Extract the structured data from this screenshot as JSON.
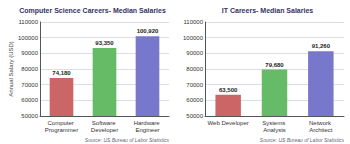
{
  "chart_data": [
    {
      "type": "bar",
      "title": "Computer Science Careers- Median Salaries",
      "categories": [
        "Computer Programmer",
        "Software Developer",
        "Hardware Engineer"
      ],
      "values": [
        74180,
        93350,
        100920
      ],
      "value_labels": [
        "74,180",
        "93,350",
        "100,920"
      ],
      "colors": [
        "#cc6666",
        "#66bb66",
        "#7777cc"
      ],
      "ylabel": "Annual Salary (USD)",
      "ylim": [
        50000,
        110000
      ],
      "yticks": [
        50000,
        60000,
        70000,
        80000,
        90000,
        100000,
        110000
      ],
      "grid": true,
      "data_labels": true,
      "annotations": [
        "Source: US Bureau of Labor Statistics"
      ]
    },
    {
      "type": "bar",
      "title": "IT Careers- Median Salaries",
      "categories": [
        "Web Developer",
        "Systems Analysts",
        "Network Architect"
      ],
      "values": [
        63500,
        79680,
        91260
      ],
      "value_labels": [
        "63,500",
        "79,680",
        "91,260"
      ],
      "colors": [
        "#cc6666",
        "#66bb66",
        "#7777cc"
      ],
      "ylim": [
        50000,
        110000
      ],
      "yticks": [
        50000,
        60000,
        70000,
        80000,
        90000,
        100000,
        110000
      ],
      "grid": true,
      "data_labels": true,
      "annotations": [
        "Source: US Bureau of Labor Statistics"
      ]
    }
  ]
}
